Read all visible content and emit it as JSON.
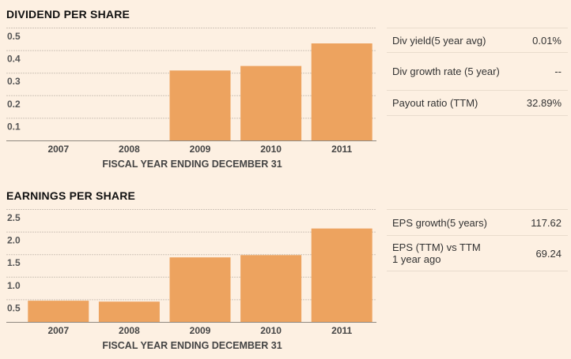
{
  "chart_data": [
    {
      "type": "bar",
      "title": "DIVIDEND PER SHARE",
      "xlabel": "FISCAL YEAR ENDING DECEMBER 31",
      "ylabel": "",
      "categories": [
        "2007",
        "2008",
        "2009",
        "2010",
        "2011"
      ],
      "values": [
        0,
        0,
        0.31,
        0.33,
        0.43
      ],
      "yticks": [
        "0.1",
        "0.2",
        "0.3",
        "0.4",
        "0.5"
      ],
      "ytick_values": [
        0.1,
        0.2,
        0.3,
        0.4,
        0.5
      ],
      "ylim": [
        0,
        0.5
      ],
      "grid": true,
      "bar_color": "#eda35f"
    },
    {
      "type": "bar",
      "title": "EARNINGS PER SHARE",
      "xlabel": "FISCAL YEAR ENDING DECEMBER 31",
      "ylabel": "",
      "categories": [
        "2007",
        "2008",
        "2009",
        "2010",
        "2011"
      ],
      "values": [
        0.47,
        0.45,
        1.43,
        1.48,
        2.07
      ],
      "yticks": [
        "0.5",
        "1.0",
        "1.5",
        "2.0",
        "2.5"
      ],
      "ytick_values": [
        0.5,
        1.0,
        1.5,
        2.0,
        2.5
      ],
      "ylim": [
        0,
        2.5
      ],
      "grid": true,
      "bar_color": "#eda35f"
    }
  ],
  "dividend_stats": [
    {
      "label": "Div yield(5 year avg)",
      "value": "0.01%"
    },
    {
      "label": "Div growth rate (5 year)",
      "value": "--"
    },
    {
      "label": "Payout ratio (TTM)",
      "value": "32.89%"
    }
  ],
  "eps_stats": [
    {
      "label": "EPS growth(5 years)",
      "value": "117.62"
    },
    {
      "label": "EPS (TTM) vs TTM 1 year ago",
      "value": "69.24"
    }
  ]
}
